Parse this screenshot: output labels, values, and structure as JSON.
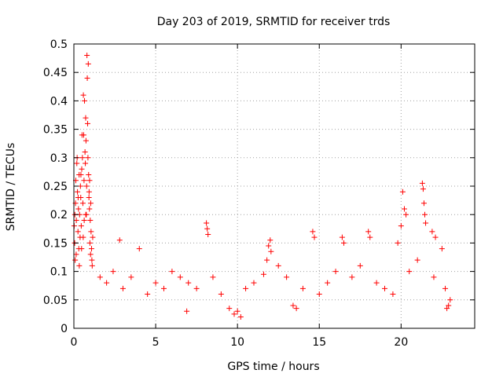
{
  "chart_data": {
    "type": "scatter",
    "title": "Day 203 of 2019, SRMTID for receiver trds",
    "xlabel": "GPS time / hours",
    "ylabel": "SRMTID / TECUs",
    "xlim": [
      0,
      24.5
    ],
    "ylim": [
      0,
      0.5
    ],
    "xticks": [
      0,
      5,
      10,
      15,
      20
    ],
    "xtick_labels": [
      "0",
      "5",
      "10",
      "15",
      "20"
    ],
    "yticks": [
      0,
      0.05,
      0.1,
      0.15,
      0.2,
      0.25,
      0.3,
      0.35,
      0.4,
      0.45,
      0.5
    ],
    "ytick_labels": [
      "0",
      "0.05",
      "0.1",
      "0.15",
      "0.2",
      "0.25",
      "0.3",
      "0.35",
      "0.4",
      "0.45",
      "0.5"
    ],
    "grid": true,
    "marker": "+",
    "color": "#ff0000",
    "series": [
      {
        "name": "SRMTID",
        "points": [
          [
            0.02,
            0.18
          ],
          [
            0.05,
            0.15
          ],
          [
            0.08,
            0.12
          ],
          [
            0.1,
            0.22
          ],
          [
            0.12,
            0.26
          ],
          [
            0.15,
            0.19
          ],
          [
            0.18,
            0.29
          ],
          [
            0.2,
            0.3
          ],
          [
            0.22,
            0.24
          ],
          [
            0.25,
            0.17
          ],
          [
            0.28,
            0.21
          ],
          [
            0.3,
            0.14
          ],
          [
            0.32,
            0.27
          ],
          [
            0.35,
            0.2
          ],
          [
            0.38,
            0.16
          ],
          [
            0.4,
            0.25
          ],
          [
            0.42,
            0.23
          ],
          [
            0.45,
            0.18
          ],
          [
            0.48,
            0.28
          ],
          [
            0.5,
            0.34
          ],
          [
            0.52,
            0.3
          ],
          [
            0.55,
            0.22
          ],
          [
            0.58,
            0.41
          ],
          [
            0.6,
            0.34
          ],
          [
            0.62,
            0.26
          ],
          [
            0.65,
            0.4
          ],
          [
            0.68,
            0.31
          ],
          [
            0.7,
            0.29
          ],
          [
            0.72,
            0.37
          ],
          [
            0.74,
            0.33
          ],
          [
            0.76,
            0.2
          ],
          [
            0.78,
            0.25
          ],
          [
            0.8,
            0.48
          ],
          [
            0.82,
            0.44
          ],
          [
            0.84,
            0.36
          ],
          [
            0.86,
            0.3
          ],
          [
            0.88,
            0.465
          ],
          [
            0.9,
            0.27
          ],
          [
            0.92,
            0.23
          ],
          [
            0.95,
            0.21
          ],
          [
            0.98,
            0.15
          ],
          [
            1.0,
            0.19
          ],
          [
            1.02,
            0.13
          ],
          [
            1.05,
            0.17
          ],
          [
            1.08,
            0.14
          ],
          [
            1.1,
            0.12
          ],
          [
            1.12,
            0.11
          ],
          [
            1.15,
            0.16
          ],
          [
            0.14,
            0.13
          ],
          [
            0.33,
            0.11
          ],
          [
            0.47,
            0.14
          ],
          [
            0.57,
            0.16
          ],
          [
            0.63,
            0.19
          ],
          [
            0.73,
            0.2
          ],
          [
            0.93,
            0.24
          ],
          [
            0.96,
            0.26
          ],
          [
            1.03,
            0.22
          ],
          [
            0.06,
            0.2
          ],
          [
            0.26,
            0.23
          ],
          [
            0.43,
            0.27
          ],
          [
            2.8,
            0.155
          ],
          [
            4.0,
            0.14
          ],
          [
            8.1,
            0.185
          ],
          [
            8.15,
            0.175
          ],
          [
            8.2,
            0.165
          ],
          [
            12.0,
            0.155
          ],
          [
            11.9,
            0.145
          ],
          [
            12.05,
            0.135
          ],
          [
            14.6,
            0.17
          ],
          [
            14.7,
            0.16
          ],
          [
            16.4,
            0.16
          ],
          [
            16.5,
            0.15
          ],
          [
            18.0,
            0.17
          ],
          [
            18.1,
            0.16
          ],
          [
            19.8,
            0.15
          ],
          [
            20.0,
            0.18
          ],
          [
            20.1,
            0.24
          ],
          [
            20.2,
            0.21
          ],
          [
            20.3,
            0.2
          ],
          [
            21.3,
            0.255
          ],
          [
            21.35,
            0.245
          ],
          [
            21.4,
            0.22
          ],
          [
            21.45,
            0.2
          ],
          [
            21.5,
            0.185
          ],
          [
            21.9,
            0.17
          ],
          [
            22.1,
            0.16
          ],
          [
            22.5,
            0.14
          ],
          [
            22.9,
            0.04
          ],
          [
            23.0,
            0.05
          ],
          [
            22.8,
            0.035
          ],
          [
            12.5,
            0.11
          ],
          [
            11.6,
            0.095
          ],
          [
            11.8,
            0.12
          ],
          [
            9.5,
            0.035
          ],
          [
            9.8,
            0.025
          ],
          [
            10.0,
            0.03
          ],
          [
            10.2,
            0.02
          ],
          [
            13.4,
            0.04
          ],
          [
            13.6,
            0.035
          ],
          [
            6.9,
            0.03
          ],
          [
            1.6,
            0.09
          ],
          [
            2.0,
            0.08
          ],
          [
            2.4,
            0.1
          ],
          [
            3.0,
            0.07
          ],
          [
            3.5,
            0.09
          ],
          [
            4.5,
            0.06
          ],
          [
            5.0,
            0.08
          ],
          [
            5.5,
            0.07
          ],
          [
            6.0,
            0.1
          ],
          [
            6.5,
            0.09
          ],
          [
            7.0,
            0.08
          ],
          [
            7.5,
            0.07
          ],
          [
            8.5,
            0.09
          ],
          [
            9.0,
            0.06
          ],
          [
            10.5,
            0.07
          ],
          [
            11.0,
            0.08
          ],
          [
            13.0,
            0.09
          ],
          [
            14.0,
            0.07
          ],
          [
            15.0,
            0.06
          ],
          [
            15.5,
            0.08
          ],
          [
            16.0,
            0.1
          ],
          [
            17.0,
            0.09
          ],
          [
            17.5,
            0.11
          ],
          [
            18.5,
            0.08
          ],
          [
            19.0,
            0.07
          ],
          [
            19.5,
            0.06
          ],
          [
            20.5,
            0.1
          ],
          [
            21.0,
            0.12
          ],
          [
            22.0,
            0.09
          ],
          [
            22.7,
            0.07
          ]
        ]
      }
    ]
  }
}
